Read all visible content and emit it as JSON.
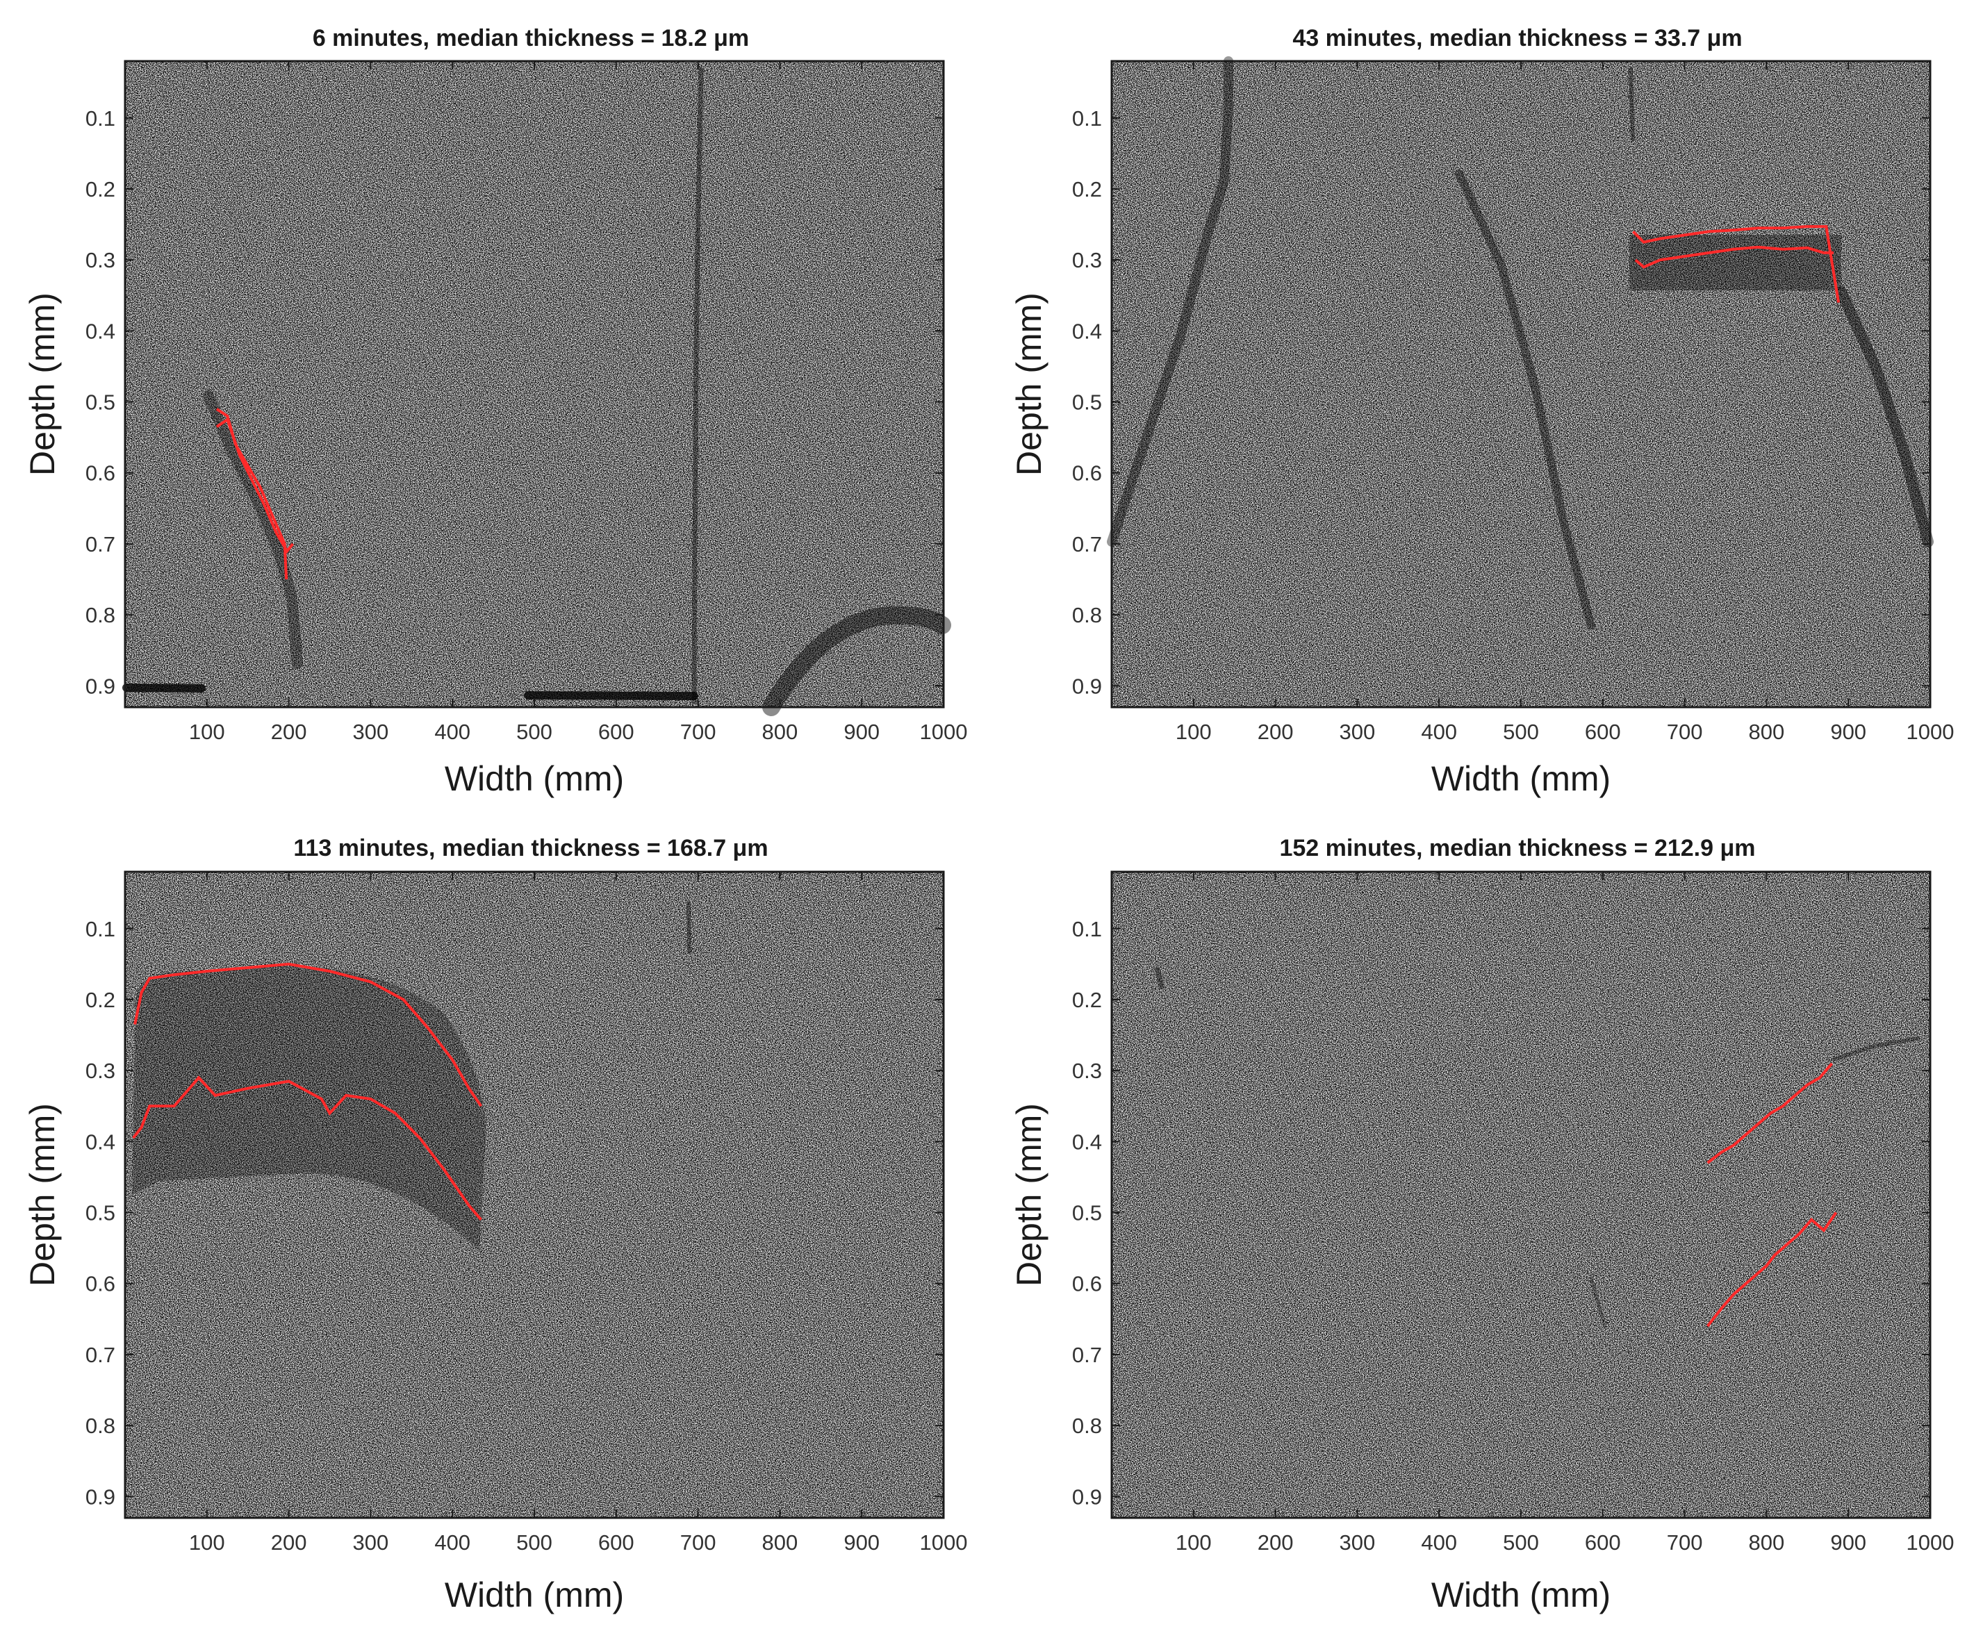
{
  "chart_data": [
    {
      "type": "scatter",
      "title": "6 minutes, median thickness = 18.2 μm",
      "xlabel": "Width (mm)",
      "ylabel": "Depth (mm)",
      "xlim": [
        0,
        1000
      ],
      "ylim": [
        0.93,
        0.02
      ],
      "xticks": [
        "100",
        "200",
        "300",
        "400",
        "500",
        "600",
        "700",
        "800",
        "900",
        "1000"
      ],
      "yticks": [
        "0.1",
        "0.2",
        "0.3",
        "0.4",
        "0.5",
        "0.6",
        "0.7",
        "0.8",
        "0.9"
      ],
      "grid": false,
      "series": [
        {
          "name": "upper boundary",
          "color": "#ff2a2a",
          "points": [
            [
              112,
              0.51
            ],
            [
              125,
              0.52
            ],
            [
              135,
              0.56
            ],
            [
              150,
              0.59
            ],
            [
              165,
              0.62
            ],
            [
              180,
              0.66
            ],
            [
              195,
              0.7
            ],
            [
              197,
              0.75
            ]
          ]
        },
        {
          "name": "lower boundary",
          "color": "#ff2a2a",
          "points": [
            [
              112,
              0.535
            ],
            [
              125,
              0.525
            ],
            [
              140,
              0.575
            ],
            [
              155,
              0.61
            ],
            [
              170,
              0.645
            ],
            [
              185,
              0.685
            ],
            [
              198,
              0.71
            ],
            [
              205,
              0.7
            ]
          ]
        }
      ]
    },
    {
      "type": "scatter",
      "title": "43 minutes, median thickness = 33.7 μm",
      "xlabel": "Width (mm)",
      "ylabel": "Depth (mm)",
      "xlim": [
        0,
        1000
      ],
      "ylim": [
        0.93,
        0.02
      ],
      "xticks": [
        "100",
        "200",
        "300",
        "400",
        "500",
        "600",
        "700",
        "800",
        "900",
        "1000"
      ],
      "yticks": [
        "0.1",
        "0.2",
        "0.3",
        "0.4",
        "0.5",
        "0.6",
        "0.7",
        "0.8",
        "0.9"
      ],
      "grid": false,
      "series": [
        {
          "name": "upper boundary",
          "color": "#ff2a2a",
          "points": [
            [
              637,
              0.26
            ],
            [
              650,
              0.275
            ],
            [
              670,
              0.27
            ],
            [
              700,
              0.265
            ],
            [
              730,
              0.26
            ],
            [
              760,
              0.258
            ],
            [
              790,
              0.255
            ],
            [
              820,
              0.255
            ],
            [
              850,
              0.253
            ],
            [
              873,
              0.253
            ],
            [
              878,
              0.29
            ],
            [
              888,
              0.36
            ]
          ]
        },
        {
          "name": "lower boundary",
          "color": "#ff2a2a",
          "points": [
            [
              640,
              0.3
            ],
            [
              650,
              0.31
            ],
            [
              670,
              0.3
            ],
            [
              700,
              0.295
            ],
            [
              730,
              0.29
            ],
            [
              760,
              0.285
            ],
            [
              790,
              0.282
            ],
            [
              820,
              0.285
            ],
            [
              850,
              0.283
            ],
            [
              870,
              0.29
            ],
            [
              882,
              0.29
            ]
          ]
        }
      ]
    },
    {
      "type": "scatter",
      "title": "113 minutes, median thickness = 168.7 μm",
      "xlabel": "Width (mm)",
      "ylabel": "Depth (mm)",
      "xlim": [
        0,
        1000
      ],
      "ylim": [
        0.93,
        0.02
      ],
      "xticks": [
        "100",
        "200",
        "300",
        "400",
        "500",
        "600",
        "700",
        "800",
        "900",
        "1000"
      ],
      "yticks": [
        "0.1",
        "0.2",
        "0.3",
        "0.4",
        "0.5",
        "0.6",
        "0.7",
        "0.8",
        "0.9"
      ],
      "grid": false,
      "series": [
        {
          "name": "upper boundary",
          "color": "#ff2a2a",
          "points": [
            [
              12,
              0.235
            ],
            [
              20,
              0.19
            ],
            [
              30,
              0.17
            ],
            [
              60,
              0.165
            ],
            [
              100,
              0.16
            ],
            [
              150,
              0.155
            ],
            [
              200,
              0.15
            ],
            [
              250,
              0.16
            ],
            [
              300,
              0.175
            ],
            [
              340,
              0.2
            ],
            [
              370,
              0.24
            ],
            [
              400,
              0.285
            ],
            [
              420,
              0.325
            ],
            [
              435,
              0.35
            ]
          ]
        },
        {
          "name": "lower boundary",
          "color": "#ff2a2a",
          "points": [
            [
              10,
              0.395
            ],
            [
              20,
              0.38
            ],
            [
              30,
              0.35
            ],
            [
              60,
              0.35
            ],
            [
              90,
              0.31
            ],
            [
              110,
              0.335
            ],
            [
              150,
              0.325
            ],
            [
              200,
              0.315
            ],
            [
              240,
              0.34
            ],
            [
              250,
              0.36
            ],
            [
              270,
              0.335
            ],
            [
              300,
              0.34
            ],
            [
              330,
              0.36
            ],
            [
              360,
              0.395
            ],
            [
              390,
              0.44
            ],
            [
              420,
              0.49
            ],
            [
              435,
              0.51
            ]
          ]
        }
      ]
    },
    {
      "type": "scatter",
      "title": "152 minutes, median thickness = 212.9 μm",
      "xlabel": "Width (mm)",
      "ylabel": "Depth (mm)",
      "xlim": [
        0,
        1000
      ],
      "ylim": [
        0.93,
        0.02
      ],
      "xticks": [
        "100",
        "200",
        "300",
        "400",
        "500",
        "600",
        "700",
        "800",
        "900",
        "1000"
      ],
      "yticks": [
        "0.1",
        "0.2",
        "0.3",
        "0.4",
        "0.5",
        "0.6",
        "0.7",
        "0.8",
        "0.9"
      ],
      "grid": false,
      "series": [
        {
          "name": "upper boundary",
          "color": "#ff2a2a",
          "points": [
            [
              728,
              0.43
            ],
            [
              745,
              0.415
            ],
            [
              760,
              0.405
            ],
            [
              775,
              0.39
            ],
            [
              790,
              0.375
            ],
            [
              805,
              0.36
            ],
            [
              820,
              0.35
            ],
            [
              835,
              0.335
            ],
            [
              850,
              0.32
            ],
            [
              865,
              0.31
            ],
            [
              880,
              0.29
            ]
          ]
        },
        {
          "name": "lower boundary",
          "color": "#ff2a2a",
          "points": [
            [
              728,
              0.66
            ],
            [
              745,
              0.635
            ],
            [
              760,
              0.615
            ],
            [
              775,
              0.6
            ],
            [
              790,
              0.585
            ],
            [
              800,
              0.575
            ],
            [
              810,
              0.56
            ],
            [
              825,
              0.545
            ],
            [
              840,
              0.53
            ],
            [
              855,
              0.51
            ],
            [
              870,
              0.525
            ],
            [
              885,
              0.5
            ]
          ]
        }
      ]
    }
  ]
}
